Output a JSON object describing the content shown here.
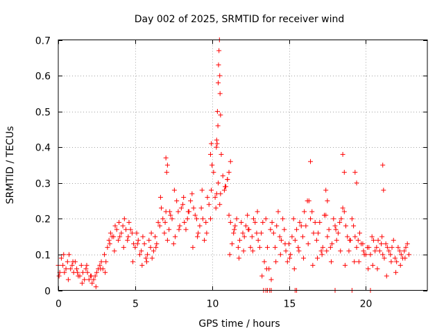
{
  "chart_data": {
    "type": "scatter",
    "title": "Day 002 of 2025, SRMTID for receiver wind",
    "xlabel": "GPS time / hours",
    "ylabel": "SRMTID / TECUs",
    "xlim": [
      0,
      24
    ],
    "ylim": [
      0,
      0.7
    ],
    "xticks": [
      0,
      5,
      10,
      15,
      20
    ],
    "xtick_labels": [
      "0",
      "5",
      "10",
      "15",
      "20"
    ],
    "yticks": [
      0,
      0.1,
      0.2,
      0.3,
      0.4,
      0.5,
      0.6,
      0.7
    ],
    "ytick_labels": [
      "0",
      "0.1",
      "0.2",
      "0.3",
      "0.4",
      "0.5",
      "0.6",
      "0.7"
    ],
    "grid": true,
    "marker": "+",
    "color": "#ff0000",
    "series": [
      {
        "name": "SRMTID",
        "x": [
          0.0,
          0.2,
          0.4,
          0.6,
          0.8,
          1.0,
          1.2,
          1.4,
          1.6,
          1.8,
          2.0,
          2.2,
          2.4,
          2.6,
          2.8,
          3.0,
          3.2,
          3.4,
          3.6,
          3.8,
          4.0,
          4.2,
          4.4,
          4.6,
          4.8,
          5.0,
          5.2,
          5.4,
          5.6,
          5.8,
          6.0,
          6.2,
          6.4,
          6.6,
          6.8,
          7.0,
          7.2,
          7.4,
          7.6,
          7.8,
          8.0,
          8.2,
          8.4,
          8.6,
          8.8,
          9.0,
          9.2,
          9.4,
          9.6,
          9.8,
          10.0,
          10.2,
          10.4,
          10.6,
          10.8,
          11.0,
          11.2,
          11.4,
          11.6,
          11.8,
          12.0,
          12.2,
          12.4,
          12.6,
          12.8,
          13.0,
          13.2,
          13.4,
          13.6,
          13.8,
          14.0,
          14.2,
          14.4,
          14.6,
          14.8,
          15.0,
          15.2,
          15.4,
          15.6,
          15.8,
          16.0,
          16.2,
          16.4,
          16.6,
          16.8,
          17.0,
          17.2,
          17.4,
          17.6,
          17.8,
          18.0,
          18.2,
          18.4,
          18.6,
          18.8,
          19.0,
          19.2,
          19.4,
          19.6,
          19.8,
          20.0,
          20.2,
          20.4,
          20.6,
          20.8,
          21.0,
          21.2,
          21.4,
          21.6,
          21.8,
          22.0,
          22.2,
          22.4,
          22.6,
          22.8,
          0.1,
          0.3,
          0.5,
          0.7,
          0.9,
          1.1,
          1.3,
          1.5,
          1.7,
          1.9,
          2.1,
          2.3,
          2.5,
          2.7,
          2.9,
          3.1,
          3.3,
          3.5,
          3.7,
          3.9,
          4.1,
          4.3,
          4.5,
          4.7,
          4.9,
          5.1,
          5.3,
          5.5,
          5.7,
          5.9,
          6.1,
          6.3,
          6.5,
          6.7,
          6.9,
          7.1,
          7.3,
          7.5,
          7.7,
          7.9,
          8.1,
          8.3,
          8.5,
          8.7,
          8.9,
          9.1,
          9.3,
          9.5,
          9.7,
          9.9,
          10.1,
          10.3,
          10.5,
          10.7,
          10.9,
          11.1,
          11.3,
          11.5,
          11.7,
          11.9,
          12.1,
          12.3,
          12.5,
          12.7,
          12.9,
          13.1,
          13.3,
          13.5,
          13.7,
          13.9,
          14.1,
          14.3,
          14.5,
          14.7,
          14.9,
          15.1,
          15.3,
          15.5,
          15.7,
          15.9,
          16.1,
          16.3,
          16.5,
          16.7,
          16.9,
          17.1,
          17.3,
          17.5,
          17.7,
          17.9,
          18.1,
          18.3,
          18.5,
          18.7,
          18.9,
          19.1,
          19.3,
          19.5,
          19.7,
          19.9,
          20.1,
          20.3,
          20.5,
          20.7,
          20.9,
          21.1,
          21.3,
          21.5,
          21.7,
          21.9,
          22.1,
          22.3,
          22.5,
          22.7,
          0.05,
          0.35,
          0.65,
          0.95,
          1.25,
          1.55,
          1.85,
          2.15,
          2.45,
          2.75,
          3.05,
          3.35,
          3.65,
          3.95,
          4.25,
          4.55,
          4.85,
          5.15,
          5.45,
          5.75,
          6.05,
          6.35,
          6.65,
          6.95,
          7.25,
          7.55,
          7.85,
          8.15,
          8.45,
          8.75,
          9.05,
          9.35,
          9.65,
          9.95,
          10.25,
          10.55,
          10.85,
          11.15,
          11.45,
          11.75,
          12.05,
          12.35,
          12.65,
          12.95,
          13.25,
          13.55,
          13.85,
          14.15,
          14.45,
          14.75,
          15.05,
          15.35,
          15.65,
          15.95,
          16.25,
          16.55,
          16.85,
          17.15,
          17.45,
          17.75,
          18.05,
          18.35,
          18.65,
          18.95,
          19.25,
          19.55,
          19.85,
          20.15,
          20.45,
          20.75,
          21.05,
          21.35,
          21.65,
          21.95,
          22.25,
          22.55,
          10.3,
          10.35,
          10.4,
          10.42,
          10.45,
          10.48,
          10.5,
          10.52,
          10.55,
          10.38,
          10.33,
          10.28,
          9.9,
          9.95,
          10.0,
          11.0,
          11.1,
          11.2,
          7.0,
          7.05,
          7.1,
          17.4,
          17.5,
          18.5,
          18.6,
          16.4,
          19.3,
          19.4,
          21.1,
          21.15,
          13.35,
          13.5,
          13.6,
          13.75,
          13.85,
          15.4,
          15.5,
          18.0,
          19.1,
          20.3
        ],
        "y": [
          0.07,
          0.09,
          0.05,
          0.08,
          0.06,
          0.05,
          0.06,
          0.04,
          0.05,
          0.06,
          0.03,
          0.02,
          0.04,
          0.06,
          0.08,
          0.1,
          0.12,
          0.16,
          0.15,
          0.17,
          0.15,
          0.18,
          0.17,
          0.19,
          0.16,
          0.12,
          0.14,
          0.11,
          0.13,
          0.1,
          0.12,
          0.11,
          0.13,
          0.18,
          0.2,
          0.22,
          0.17,
          0.2,
          0.15,
          0.22,
          0.23,
          0.19,
          0.2,
          0.25,
          0.23,
          0.2,
          0.18,
          0.2,
          0.19,
          0.24,
          0.35,
          0.26,
          0.3,
          0.38,
          0.28,
          0.31,
          0.19,
          0.16,
          0.2,
          0.14,
          0.16,
          0.18,
          0.17,
          0.15,
          0.19,
          0.14,
          0.16,
          0.08,
          0.12,
          0.17,
          0.16,
          0.18,
          0.15,
          0.2,
          0.11,
          0.13,
          0.15,
          0.14,
          0.12,
          0.18,
          0.22,
          0.25,
          0.2,
          0.16,
          0.14,
          0.19,
          0.12,
          0.21,
          0.17,
          0.13,
          0.18,
          0.16,
          0.2,
          0.22,
          0.15,
          0.14,
          0.18,
          0.12,
          0.16,
          0.13,
          0.1,
          0.12,
          0.15,
          0.11,
          0.14,
          0.13,
          0.09,
          0.12,
          0.1,
          0.14,
          0.08,
          0.11,
          0.09,
          0.12,
          0.1,
          0.05,
          0.07,
          0.06,
          0.1,
          0.07,
          0.08,
          0.04,
          0.07,
          0.03,
          0.05,
          0.04,
          0.03,
          0.05,
          0.07,
          0.06,
          0.08,
          0.14,
          0.15,
          0.18,
          0.14,
          0.16,
          0.2,
          0.14,
          0.17,
          0.13,
          0.16,
          0.1,
          0.15,
          0.09,
          0.14,
          0.09,
          0.15,
          0.19,
          0.23,
          0.16,
          0.14,
          0.21,
          0.13,
          0.25,
          0.18,
          0.24,
          0.17,
          0.22,
          0.27,
          0.21,
          0.16,
          0.23,
          0.14,
          0.26,
          0.2,
          0.33,
          0.27,
          0.24,
          0.32,
          0.29,
          0.21,
          0.13,
          0.18,
          0.12,
          0.19,
          0.15,
          0.21,
          0.12,
          0.2,
          0.16,
          0.12,
          0.19,
          0.2,
          0.06,
          0.19,
          0.12,
          0.22,
          0.14,
          0.17,
          0.08,
          0.1,
          0.2,
          0.17,
          0.19,
          0.15,
          0.18,
          0.25,
          0.22,
          0.19,
          0.16,
          0.11,
          0.21,
          0.15,
          0.12,
          0.2,
          0.14,
          0.19,
          0.23,
          0.18,
          0.11,
          0.2,
          0.15,
          0.14,
          0.13,
          0.1,
          0.12,
          0.1,
          0.14,
          0.12,
          0.11,
          0.1,
          0.13,
          0.11,
          0.12,
          0.09,
          0.12,
          0.1,
          0.11,
          0.13,
          0.04,
          0.1,
          0.03,
          0.08,
          0.05,
          0.02,
          0.07,
          0.04,
          0.01,
          0.06,
          0.05,
          0.13,
          0.11,
          0.19,
          0.12,
          0.15,
          0.08,
          0.13,
          0.07,
          0.08,
          0.16,
          0.12,
          0.26,
          0.19,
          0.22,
          0.28,
          0.17,
          0.26,
          0.22,
          0.12,
          0.15,
          0.28,
          0.16,
          0.28,
          0.23,
          0.27,
          0.29,
          0.1,
          0.17,
          0.09,
          0.11,
          0.17,
          0.11,
          0.22,
          0.04,
          0.06,
          0.03,
          0.08,
          0.1,
          0.13,
          0.09,
          0.06,
          0.11,
          0.09,
          0.13,
          0.07,
          0.09,
          0.1,
          0.11,
          0.08,
          0.17,
          0.11,
          0.07,
          0.14,
          0.08,
          0.08,
          0.11,
          0.06,
          0.07,
          0.06,
          0.15,
          0.04,
          0.08,
          0.05,
          0.07,
          0.09,
          0.42,
          0.5,
          0.58,
          0.63,
          0.67,
          0.7,
          0.6,
          0.55,
          0.49,
          0.46,
          0.41,
          0.4,
          0.38,
          0.41,
          0.35,
          0.31,
          0.33,
          0.36,
          0.37,
          0.33,
          0.35,
          0.28,
          0.25,
          0.38,
          0.33,
          0.36,
          0.33,
          0.3,
          0.35,
          0.28,
          0.0,
          0.0,
          0.0,
          0.0,
          0.0,
          0.0,
          0.0,
          0.0,
          0.0,
          0.0
        ]
      }
    ]
  }
}
